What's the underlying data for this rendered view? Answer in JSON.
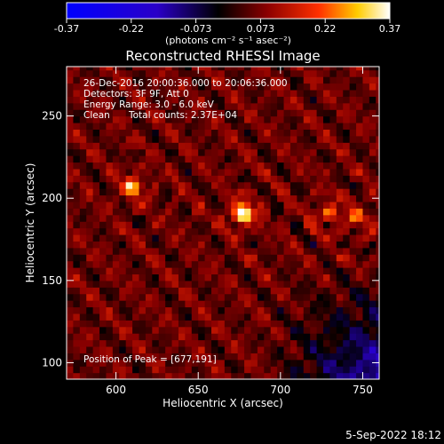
{
  "chart_data": {
    "type": "heatmap",
    "title": "Reconstructed RHESSI Image",
    "xlabel": "Heliocentric X (arcsec)",
    "ylabel": "Heliocentric Y (arcsec)",
    "xlim": [
      570,
      760
    ],
    "ylim": [
      90,
      280
    ],
    "xticks": [
      600,
      650,
      700,
      750
    ],
    "yticks": [
      100,
      150,
      200,
      250
    ],
    "colorbar": {
      "min": -0.37,
      "max": 0.37,
      "ticks": [
        "-0.37",
        "-0.22",
        "-0.073",
        "0.073",
        "0.22",
        "0.37"
      ],
      "unit_label": "(photons cm⁻² s⁻¹ asec⁻²)",
      "colormap": [
        "#0000ff",
        "#000000",
        "#8b0000",
        "#ff4000",
        "#ffff80",
        "#ffffff"
      ]
    },
    "annotations": {
      "time_range": "26-Dec-2016 20:00:36.000 to 20:06:36.000",
      "detectors": "Detectors: 3F 9F, Att 0",
      "energy_range": "Energy Range: 3.0 - 6.0 keV",
      "method": "Clean",
      "total_counts": "Total counts: 2.37E+04",
      "peak_position": "Position of Peak = [677,191]"
    },
    "peak": {
      "x": 677,
      "y": 191,
      "value": 0.37
    },
    "secondary_sources": [
      {
        "x": 610,
        "y": 207,
        "value": 0.24
      },
      {
        "x": 729,
        "y": 191,
        "value": 0.18
      },
      {
        "x": 747,
        "y": 189,
        "value": 0.16
      }
    ],
    "grid": false,
    "timestamp": "5-Sep-2022 18:12"
  }
}
